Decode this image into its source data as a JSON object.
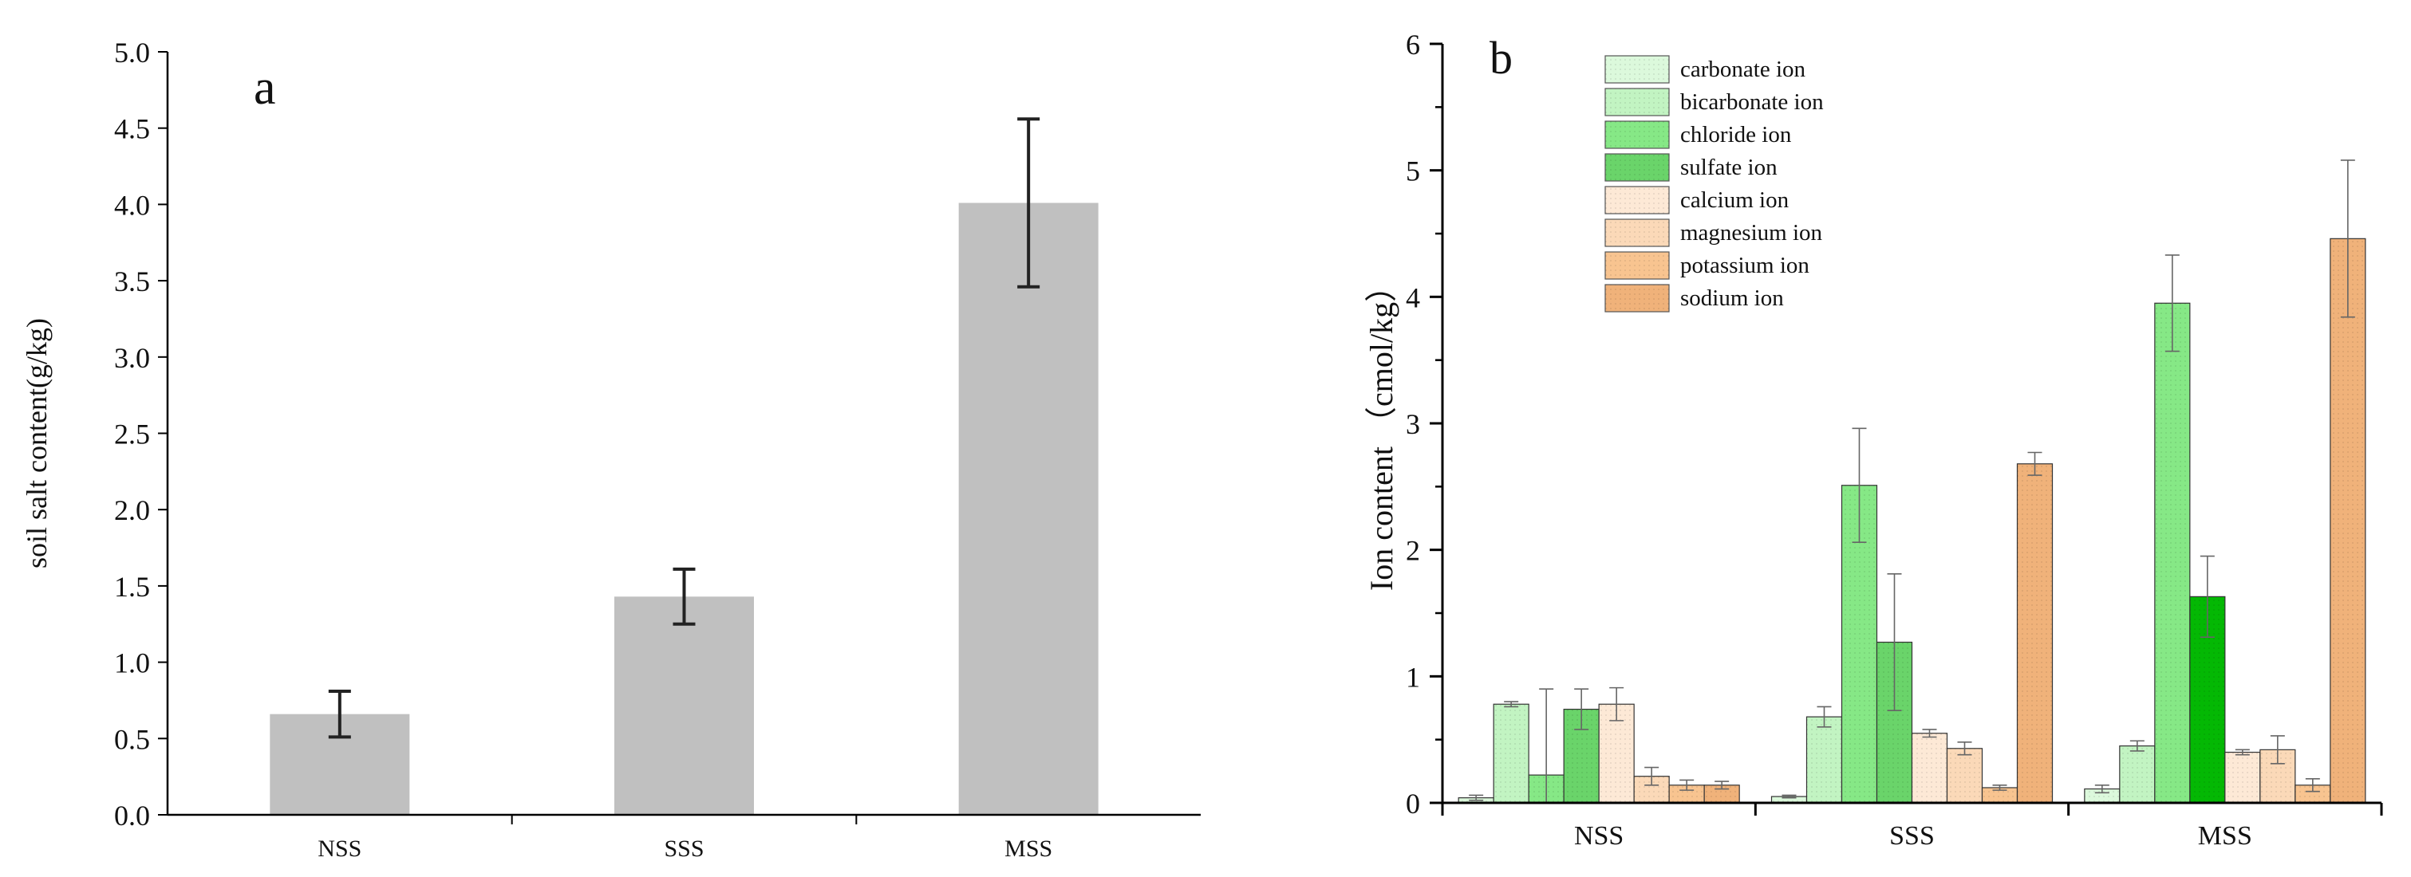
{
  "chart_data": [
    {
      "type": "bar",
      "panel_label": "a",
      "title": "",
      "xlabel": "",
      "ylabel": "soil salt content(g/kg)",
      "ylim": [
        0,
        5
      ],
      "ytick_step": 0.5,
      "ytick_labels": [
        "0.0",
        "0.5",
        "1.0",
        "1.5",
        "2.0",
        "2.5",
        "3.0",
        "3.5",
        "4.0",
        "4.5",
        "5.0"
      ],
      "categories": [
        "NSS",
        "SSS",
        "MSS"
      ],
      "values": [
        0.66,
        1.43,
        4.01
      ],
      "errors": [
        0.15,
        0.18,
        0.55
      ],
      "bar_color": "#c0c0c0",
      "error_color": "#222222"
    },
    {
      "type": "bar",
      "panel_label": "b",
      "title": "",
      "xlabel": "",
      "ylabel": "Ion content （cmol/kg）",
      "ylim": [
        0,
        6
      ],
      "ytick_step": 1,
      "ytick_labels": [
        "0",
        "1",
        "2",
        "3",
        "4",
        "5",
        "6"
      ],
      "categories": [
        "NSS",
        "SSS",
        "MSS"
      ],
      "legend_position": "top-left",
      "series": [
        {
          "name": "carbonate ion",
          "color": "#dcf9dc",
          "values": [
            0.04,
            0.05,
            0.11
          ],
          "errors": [
            0.02,
            0.01,
            0.03
          ]
        },
        {
          "name": "bicarbonate ion",
          "color": "#c2f4c2",
          "values": [
            0.78,
            0.68,
            0.45
          ],
          "errors": [
            0.02,
            0.08,
            0.04
          ]
        },
        {
          "name": "chloride ion",
          "color": "#86e886",
          "values": [
            0.22,
            2.51,
            3.95
          ],
          "errors": [
            0.68,
            0.45,
            0.38
          ]
        },
        {
          "name": "sulfate ion",
          "color": "#6ad46a",
          "values": [
            0.74,
            1.27,
            1.63
          ],
          "errors": [
            0.16,
            0.54,
            0.32
          ]
        },
        {
          "name": "calcium ion",
          "color": "#fde9d6",
          "values": [
            0.78,
            0.55,
            0.4
          ],
          "errors": [
            0.13,
            0.03,
            0.02
          ]
        },
        {
          "name": "magnesium ion",
          "color": "#fbd9b8",
          "values": [
            0.21,
            0.43,
            0.42
          ],
          "errors": [
            0.07,
            0.05,
            0.11
          ]
        },
        {
          "name": "potassium ion",
          "color": "#f8c490",
          "values": [
            0.14,
            0.12,
            0.14
          ],
          "errors": [
            0.04,
            0.02,
            0.05
          ]
        },
        {
          "name": "sodium ion",
          "color": "#f0b27a",
          "values": [
            0.14,
            2.68,
            4.46
          ],
          "errors": [
            0.03,
            0.09,
            0.62
          ]
        }
      ],
      "highlight": {
        "series": "sulfate ion",
        "category": "MSS",
        "color": "#04b804"
      },
      "error_color": "#666666"
    }
  ]
}
